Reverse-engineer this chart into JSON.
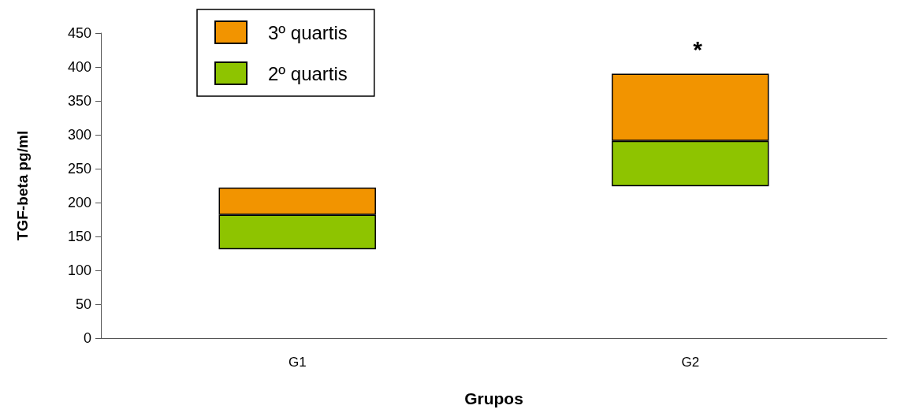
{
  "chart_data": {
    "type": "bar",
    "xlabel": "Grupos",
    "ylabel": "TGF-beta pg/ml",
    "categories": [
      "G1",
      "G2"
    ],
    "series": [
      {
        "name": "2º quartis",
        "color": "#8ec400",
        "base": [
          131,
          224
        ],
        "values": [
          51,
          67
        ]
      },
      {
        "name": "3º quartis",
        "color": "#f29400",
        "base": [
          182,
          291
        ],
        "values": [
          40,
          99
        ]
      }
    ],
    "ylim": [
      0,
      450
    ],
    "yticks": [
      0,
      50,
      100,
      150,
      200,
      250,
      300,
      350,
      400,
      450
    ],
    "grid": false,
    "legend": "top left",
    "annotations": [
      "*"
    ]
  }
}
